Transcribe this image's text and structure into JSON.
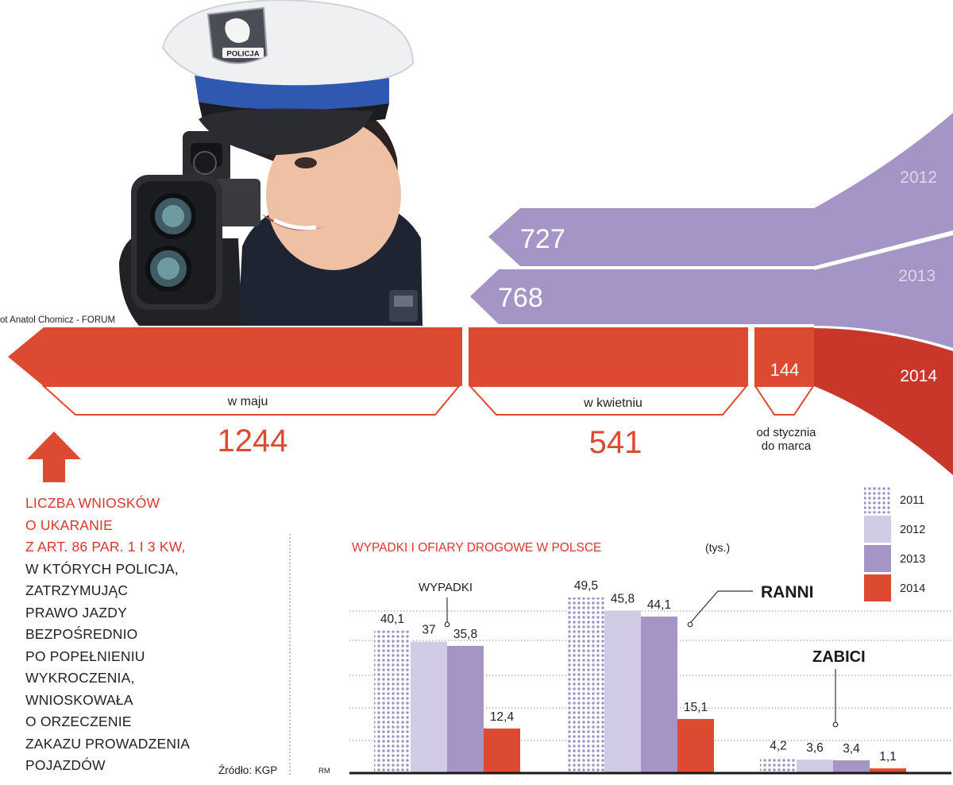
{
  "photo": {
    "credit": "ot Anatol Chomicz - FORUM",
    "cap_badge_text": "POLICJA"
  },
  "colors": {
    "red": "#dd4a32",
    "red_dark": "#c9372a",
    "purple": "#a595c6",
    "purple_light": "#d2cbe5",
    "purple_dots": "#9d92c8",
    "text_red": "#d9382c"
  },
  "top_infographic": {
    "year_labels": [
      "2012",
      "2013",
      "2014"
    ],
    "period_2012_value": "727",
    "period_2013_value": "768",
    "segments": [
      {
        "caption": "w maju",
        "value": "1244"
      },
      {
        "caption": "w kwietniu",
        "value": "541"
      },
      {
        "caption_line1": "od stycznia",
        "caption_line2": "do marca",
        "value": "144"
      }
    ]
  },
  "side_text": {
    "red_lines": [
      "LICZBA WNIOSKÓW",
      "O UKARANIE",
      "Z ART. 86 PAR. 1 I 3 KW,"
    ],
    "black_lines": [
      "W KTÓRYCH POLICJA,",
      "ZATRZYMUJĄC",
      "PRAWO JAZDY",
      "BEZPOŚREDNIO",
      "PO POPEŁNIENIU",
      "WYKROCZENIA,",
      "WNIOSKOWAŁA",
      "O ORZECZENIE",
      "ZAKAZU PROWADZENIA",
      "POJAZDÓW"
    ]
  },
  "source": "Źródło: KGP",
  "author": "RM",
  "chart_data": {
    "type": "bar",
    "title": "WYPADKI I OFIARY DROGOWE W POLSCE",
    "unit": "(tys.)",
    "categories": [
      "WYPADKI",
      "RANNI",
      "ZABICI"
    ],
    "series": [
      {
        "name": "2011",
        "values": [
          40.1,
          49.5,
          4.2
        ],
        "labels": [
          "40,1",
          "49,5",
          "4,2"
        ]
      },
      {
        "name": "2012",
        "values": [
          37,
          45.8,
          3.6
        ],
        "labels": [
          "37",
          "45,8",
          "3,6"
        ]
      },
      {
        "name": "2013",
        "values": [
          35.8,
          44.1,
          3.4
        ],
        "labels": [
          "35,8",
          "44,1",
          "3,4"
        ]
      },
      {
        "name": "2014",
        "values": [
          12.4,
          15.1,
          1.1
        ],
        "labels": [
          "12,4",
          "15,1",
          "1,1"
        ]
      }
    ],
    "ylim": [
      0,
      54
    ],
    "legend_position": "top-right",
    "grid": true
  }
}
